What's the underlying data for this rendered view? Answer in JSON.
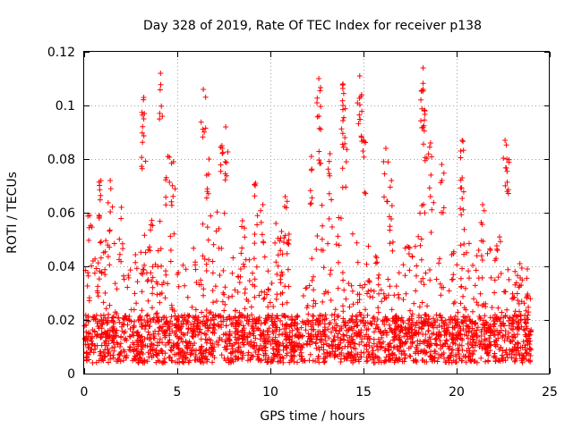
{
  "chart_data": {
    "type": "scatter",
    "title": "Day 328 of 2019, Rate Of TEC Index for receiver p138",
    "xlabel": "GPS time / hours",
    "ylabel": "ROTI / TECUs",
    "xlim": [
      0,
      25
    ],
    "ylim": [
      0,
      0.12
    ],
    "xticks": [
      "0",
      "5",
      "10",
      "15",
      "20",
      "25"
    ],
    "yticks": [
      "0",
      "0.02",
      "0.04",
      "0.06",
      "0.08",
      "0.1",
      "0.12"
    ],
    "grid": true,
    "marker": "plus",
    "color": "#ff0000",
    "series": [
      {
        "name": "",
        "peaks": [
          {
            "x": 0.3,
            "y": 0.059
          },
          {
            "x": 0.8,
            "y": 0.059
          },
          {
            "x": 0.9,
            "y": 0.072
          },
          {
            "x": 1.4,
            "y": 0.072
          },
          {
            "x": 2.0,
            "y": 0.062
          },
          {
            "x": 3.2,
            "y": 0.095
          },
          {
            "x": 3.2,
            "y": 0.103
          },
          {
            "x": 4.1,
            "y": 0.112
          },
          {
            "x": 4.5,
            "y": 0.081
          },
          {
            "x": 4.8,
            "y": 0.079
          },
          {
            "x": 6.4,
            "y": 0.106
          },
          {
            "x": 6.7,
            "y": 0.08
          },
          {
            "x": 7.4,
            "y": 0.085
          },
          {
            "x": 7.6,
            "y": 0.092
          },
          {
            "x": 8.5,
            "y": 0.057
          },
          {
            "x": 9.2,
            "y": 0.071
          },
          {
            "x": 9.6,
            "y": 0.063
          },
          {
            "x": 10.3,
            "y": 0.056
          },
          {
            "x": 10.6,
            "y": 0.053
          },
          {
            "x": 10.8,
            "y": 0.066
          },
          {
            "x": 11.0,
            "y": 0.052
          },
          {
            "x": 12.2,
            "y": 0.081
          },
          {
            "x": 12.6,
            "y": 0.11
          },
          {
            "x": 12.6,
            "y": 0.096
          },
          {
            "x": 13.2,
            "y": 0.082
          },
          {
            "x": 13.9,
            "y": 0.108
          },
          {
            "x": 13.9,
            "y": 0.1
          },
          {
            "x": 14.0,
            "y": 0.088
          },
          {
            "x": 14.8,
            "y": 0.111
          },
          {
            "x": 14.9,
            "y": 0.104
          },
          {
            "x": 15.0,
            "y": 0.087
          },
          {
            "x": 16.2,
            "y": 0.084
          },
          {
            "x": 16.5,
            "y": 0.072
          },
          {
            "x": 18.2,
            "y": 0.114
          },
          {
            "x": 18.2,
            "y": 0.106
          },
          {
            "x": 18.3,
            "y": 0.098
          },
          {
            "x": 18.6,
            "y": 0.086
          },
          {
            "x": 19.2,
            "y": 0.078
          },
          {
            "x": 20.3,
            "y": 0.087
          },
          {
            "x": 20.3,
            "y": 0.073
          },
          {
            "x": 21.4,
            "y": 0.063
          },
          {
            "x": 22.6,
            "y": 0.087
          },
          {
            "x": 22.7,
            "y": 0.08
          },
          {
            "x": 23.4,
            "y": 0.041
          },
          {
            "x": 23.8,
            "y": 0.039
          }
        ],
        "envelope": [
          {
            "x": 0.0,
            "y": 0.04
          },
          {
            "x": 0.5,
            "y": 0.045
          },
          {
            "x": 1.0,
            "y": 0.05
          },
          {
            "x": 1.5,
            "y": 0.05
          },
          {
            "x": 2.0,
            "y": 0.045
          },
          {
            "x": 2.5,
            "y": 0.04
          },
          {
            "x": 3.0,
            "y": 0.05
          },
          {
            "x": 3.5,
            "y": 0.06
          },
          {
            "x": 4.0,
            "y": 0.06
          },
          {
            "x": 4.5,
            "y": 0.065
          },
          {
            "x": 5.0,
            "y": 0.05
          },
          {
            "x": 5.5,
            "y": 0.04
          },
          {
            "x": 6.0,
            "y": 0.05
          },
          {
            "x": 6.5,
            "y": 0.06
          },
          {
            "x": 7.0,
            "y": 0.06
          },
          {
            "x": 7.5,
            "y": 0.065
          },
          {
            "x": 8.0,
            "y": 0.045
          },
          {
            "x": 8.5,
            "y": 0.04
          },
          {
            "x": 9.0,
            "y": 0.055
          },
          {
            "x": 9.5,
            "y": 0.05
          },
          {
            "x": 10.0,
            "y": 0.035
          },
          {
            "x": 10.5,
            "y": 0.04
          },
          {
            "x": 11.0,
            "y": 0.03
          },
          {
            "x": 11.5,
            "y": 0.02
          },
          {
            "x": 12.0,
            "y": 0.04
          },
          {
            "x": 12.5,
            "y": 0.06
          },
          {
            "x": 13.0,
            "y": 0.065
          },
          {
            "x": 13.5,
            "y": 0.06
          },
          {
            "x": 14.0,
            "y": 0.065
          },
          {
            "x": 14.5,
            "y": 0.06
          },
          {
            "x": 15.0,
            "y": 0.055
          },
          {
            "x": 15.5,
            "y": 0.045
          },
          {
            "x": 16.0,
            "y": 0.045
          },
          {
            "x": 16.5,
            "y": 0.05
          },
          {
            "x": 17.0,
            "y": 0.045
          },
          {
            "x": 17.5,
            "y": 0.05
          },
          {
            "x": 18.0,
            "y": 0.065
          },
          {
            "x": 18.5,
            "y": 0.07
          },
          {
            "x": 19.0,
            "y": 0.06
          },
          {
            "x": 19.5,
            "y": 0.045
          },
          {
            "x": 20.0,
            "y": 0.05
          },
          {
            "x": 20.5,
            "y": 0.055
          },
          {
            "x": 21.0,
            "y": 0.05
          },
          {
            "x": 21.5,
            "y": 0.05
          },
          {
            "x": 22.0,
            "y": 0.045
          },
          {
            "x": 22.5,
            "y": 0.055
          },
          {
            "x": 23.0,
            "y": 0.04
          },
          {
            "x": 23.5,
            "y": 0.035
          },
          {
            "x": 24.0,
            "y": 0.03
          }
        ],
        "baseline": [
          0.004,
          0.022
        ]
      }
    ]
  }
}
